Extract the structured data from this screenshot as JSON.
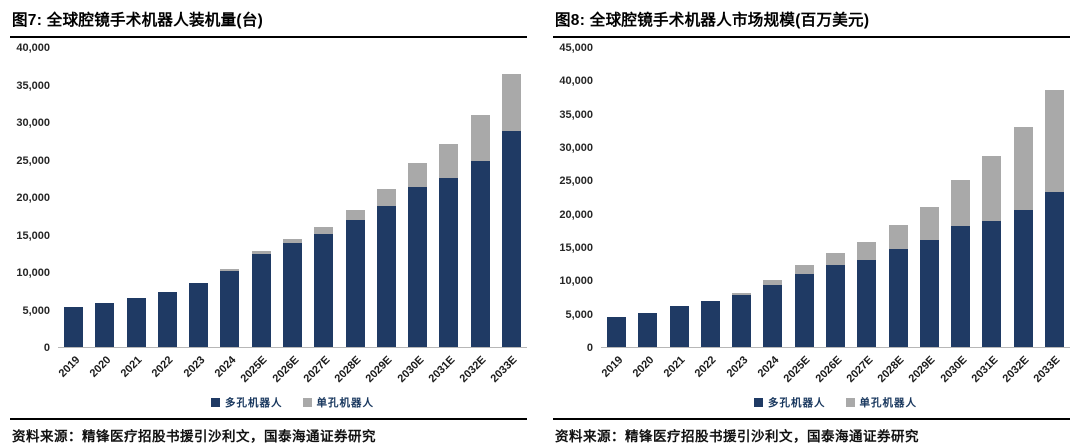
{
  "page": {
    "source_note": "资料来源：精锋医疗招股书援引沙利文，国泰海通证券研究"
  },
  "colors": {
    "multi_port": "#1f3a64",
    "single_port": "#a9a9a9",
    "axis_line": "#b7b7b7",
    "title_text": "#000000"
  },
  "chart_data": [
    {
      "type": "bar",
      "stacked": true,
      "title": "图7: 全球腔镜手术机器人装机量(台)",
      "categories": [
        "2019",
        "2020",
        "2021",
        "2022",
        "2023",
        "2024",
        "2025E",
        "2026E",
        "2027E",
        "2028E",
        "2029E",
        "2030E",
        "2031E",
        "2032E",
        "2033E"
      ],
      "series": [
        {
          "key": "multi",
          "name": "多孔机器人",
          "color": "#1f3a64",
          "values": [
            5400,
            5900,
            6600,
            7400,
            8500,
            10200,
            12500,
            13900,
            15100,
            17000,
            18900,
            21400,
            22600,
            24900,
            28900
          ]
        },
        {
          "key": "single",
          "name": "单孔机器人",
          "color": "#a9a9a9",
          "values": [
            0,
            0,
            0,
            0,
            0,
            200,
            400,
            600,
            900,
            1300,
            2200,
            3200,
            4600,
            6100,
            7600
          ]
        }
      ],
      "ylim": [
        0,
        40000
      ],
      "ytick_step": 5000,
      "grid": false,
      "legend_position": "bottom",
      "xlabel": "",
      "ylabel": ""
    },
    {
      "type": "bar",
      "stacked": true,
      "title": "图8: 全球腔镜手术机器人市场规模(百万美元)",
      "categories": [
        "2019",
        "2020",
        "2021",
        "2022",
        "2023",
        "2024",
        "2025E",
        "2026E",
        "2027E",
        "2028E",
        "2029E",
        "2030E",
        "2031E",
        "2032E",
        "2033E"
      ],
      "series": [
        {
          "key": "multi",
          "name": "多孔机器人",
          "color": "#1f3a64",
          "values": [
            4500,
            5100,
            6200,
            6900,
            7800,
            9400,
            11000,
            12300,
            13100,
            14700,
            16100,
            18200,
            19000,
            20600,
            23400
          ]
        },
        {
          "key": "single",
          "name": "单孔机器人",
          "color": "#a9a9a9",
          "values": [
            0,
            0,
            0,
            0,
            400,
            700,
            1300,
            1800,
            2700,
            3600,
            4900,
            7000,
            9700,
            12500,
            15300
          ]
        }
      ],
      "ylim": [
        0,
        45000
      ],
      "ytick_step": 5000,
      "grid": false,
      "legend_position": "bottom",
      "xlabel": "",
      "ylabel": ""
    }
  ]
}
